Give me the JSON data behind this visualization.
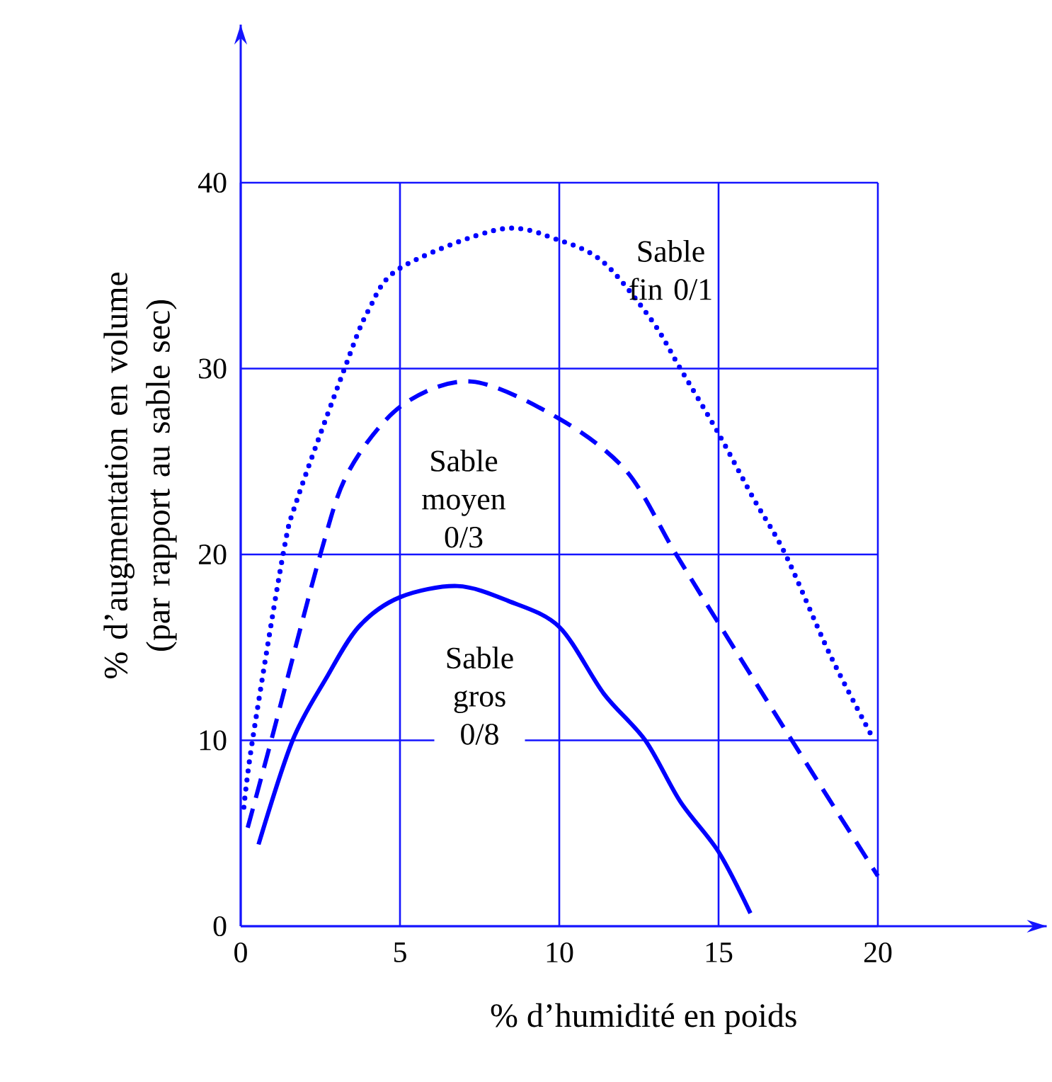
{
  "chart_data": {
    "type": "line",
    "xlabel": "% d’humidité en poids",
    "ylabel": "% d’augmentation en volume (par rapport au sable sec)",
    "xlim": [
      0,
      25.3
    ],
    "ylim": [
      0,
      48.5
    ],
    "xticks": [
      0,
      5,
      10,
      15,
      20
    ],
    "yticks": [
      0,
      10,
      20,
      30,
      40
    ],
    "grid": true,
    "marker": "none",
    "series": [
      {
        "color": "#0000ff",
        "line_style": "dotted",
        "x": [
          0.1,
          0.37,
          1.33,
          1.78,
          3.26,
          4.0,
          5.0,
          8.15,
          10.0,
          11.4,
          12.9,
          13.8,
          15.0,
          16.1,
          17.1,
          18.5,
          19.85
        ],
        "values": [
          6.4,
          10,
          20,
          23,
          30,
          33.1,
          35.4,
          37.5,
          36.9,
          35.7,
          32.6,
          30,
          26.5,
          23,
          20,
          14.6,
          10.1
        ]
      },
      {
        "color": "#0000ff",
        "line_style": "dashed",
        "x": [
          0.22,
          0.96,
          2.5,
          3.4,
          5.05,
          7.26,
          10.0,
          12.1,
          13.6,
          15.0,
          17.3,
          20.0
        ],
        "values": [
          5.3,
          10,
          20,
          24.5,
          28.0,
          29.3,
          27.3,
          24.5,
          20.2,
          16.3,
          10.0,
          2.7
        ]
      },
      {
        "color": "#0000ff",
        "line_style": "solid",
        "x": [
          0.56,
          1.63,
          2.67,
          3.7,
          5.0,
          6.8,
          8.4,
          10.0,
          11.4,
          12.7,
          13.8,
          15.0,
          16.0
        ],
        "values": [
          4.4,
          10,
          13.3,
          16.1,
          17.7,
          18.3,
          17.5,
          16.1,
          12.5,
          10,
          6.7,
          4.0,
          0.7
        ]
      }
    ],
    "annotations": [
      "Sable fin 0/1",
      "Sable moyen 0/3",
      "Sable gros 0/8"
    ]
  }
}
